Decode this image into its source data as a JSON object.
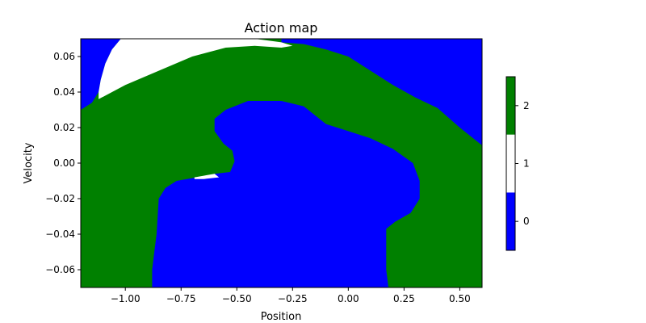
{
  "chart_data": {
    "type": "heatmap",
    "title": "Action map",
    "xlabel": "Position",
    "ylabel": "Velocity",
    "xlim": [
      -1.2,
      0.6
    ],
    "ylim": [
      -0.07,
      0.07
    ],
    "xticks": [
      -1.0,
      -0.75,
      -0.5,
      -0.25,
      0.0,
      0.25,
      0.5
    ],
    "xtick_labels": [
      "−1.00",
      "−0.75",
      "−0.50",
      "−0.25",
      "0.00",
      "0.25",
      "0.50"
    ],
    "yticks": [
      -0.06,
      -0.04,
      -0.02,
      0.0,
      0.02,
      0.04,
      0.06
    ],
    "ytick_labels": [
      "−0.06",
      "−0.04",
      "−0.02",
      "0.00",
      "0.02",
      "0.04",
      "0.06"
    ],
    "grid": false,
    "colorbar": {
      "levels": [
        0,
        1,
        2
      ],
      "labels": [
        "0",
        "1",
        "2"
      ],
      "colors": [
        "#0000ff",
        "#ffffff",
        "#008000"
      ]
    },
    "regions": [
      {
        "action": 0,
        "name": "upper-left-corner",
        "points": [
          [
            -1.2,
            0.07
          ],
          [
            -1.02,
            0.07
          ],
          [
            -1.06,
            0.064
          ],
          [
            -1.09,
            0.056
          ],
          [
            -1.11,
            0.047
          ],
          [
            -1.12,
            0.04
          ],
          [
            -1.15,
            0.034
          ],
          [
            -1.2,
            0.03
          ]
        ]
      },
      {
        "action": 1,
        "name": "upper-left-strip",
        "points": [
          [
            -1.02,
            0.07
          ],
          [
            -0.55,
            0.07
          ],
          [
            -0.42,
            0.07
          ],
          [
            -0.3,
            0.068
          ],
          [
            -0.25,
            0.066
          ],
          [
            -0.3,
            0.065
          ],
          [
            -0.42,
            0.066
          ],
          [
            -0.55,
            0.065
          ],
          [
            -0.7,
            0.06
          ],
          [
            -0.85,
            0.052
          ],
          [
            -1.0,
            0.044
          ],
          [
            -1.12,
            0.036
          ],
          [
            -1.12,
            0.04
          ],
          [
            -1.11,
            0.047
          ],
          [
            -1.09,
            0.056
          ],
          [
            -1.06,
            0.064
          ]
        ]
      },
      {
        "action": 0,
        "name": "upper-right-corner",
        "points": [
          [
            -0.3,
            0.07
          ],
          [
            0.6,
            0.07
          ],
          [
            0.6,
            0.01
          ],
          [
            0.5,
            0.02
          ],
          [
            0.4,
            0.031
          ],
          [
            0.3,
            0.037
          ],
          [
            0.2,
            0.044
          ],
          [
            0.1,
            0.052
          ],
          [
            0.0,
            0.06
          ],
          [
            -0.1,
            0.064
          ],
          [
            -0.2,
            0.067
          ],
          [
            -0.3,
            0.068
          ]
        ]
      },
      {
        "action": 0,
        "name": "central-pit",
        "points": [
          [
            -0.88,
            -0.07
          ],
          [
            0.18,
            -0.07
          ],
          [
            0.17,
            -0.06
          ],
          [
            0.17,
            -0.037
          ],
          [
            0.21,
            -0.033
          ],
          [
            0.28,
            -0.028
          ],
          [
            0.32,
            -0.02
          ],
          [
            0.32,
            -0.01
          ],
          [
            0.29,
            0.0
          ],
          [
            0.2,
            0.008
          ],
          [
            0.1,
            0.014
          ],
          [
            0.0,
            0.018
          ],
          [
            -0.1,
            0.022
          ],
          [
            -0.2,
            0.032
          ],
          [
            -0.3,
            0.035
          ],
          [
            -0.45,
            0.035
          ],
          [
            -0.55,
            0.03
          ],
          [
            -0.6,
            0.025
          ],
          [
            -0.6,
            0.018
          ],
          [
            -0.56,
            0.011
          ],
          [
            -0.52,
            0.007
          ],
          [
            -0.51,
            0.001
          ],
          [
            -0.53,
            -0.005
          ],
          [
            -0.6,
            -0.006
          ],
          [
            -0.68,
            -0.008
          ],
          [
            -0.77,
            -0.01
          ],
          [
            -0.82,
            -0.014
          ],
          [
            -0.85,
            -0.02
          ],
          [
            -0.86,
            -0.04
          ],
          [
            -0.87,
            -0.05
          ],
          [
            -0.88,
            -0.06
          ]
        ]
      },
      {
        "action": 1,
        "name": "small-white-notch",
        "points": [
          [
            -0.69,
            -0.008
          ],
          [
            -0.6,
            -0.006
          ],
          [
            -0.58,
            -0.008
          ],
          [
            -0.65,
            -0.009
          ],
          [
            -0.69,
            -0.009
          ]
        ]
      }
    ],
    "background_action": 2
  }
}
